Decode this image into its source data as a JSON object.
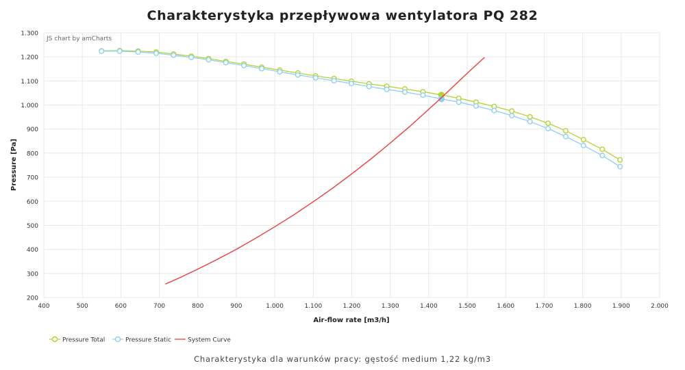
{
  "header": {
    "title": "Charakterystyka przepływowa wentylatora PQ 282",
    "credit": "JS chart by amCharts"
  },
  "footer": {
    "subtitle": "Charakterystyka dla warunków pracy: gęstość medium 1,22 kg/m3"
  },
  "colors": {
    "pressure_total": "#b3d334",
    "pressure_static": "#8fcff0",
    "system_curve": "#ee3b3b",
    "grid": "#e8e8e8",
    "axis_text": "#333333"
  },
  "chart_data": {
    "type": "line",
    "title": "Charakterystyka przepływowa wentylatora PQ 282",
    "xlabel": "Air-flow rate [m3/h]",
    "ylabel": "Pressure [Pa]",
    "xlim": [
      400,
      2000
    ],
    "ylim": [
      200,
      1300
    ],
    "grid": true,
    "legend_position": "bottom-left",
    "x_ticks": [
      "400",
      "500",
      "600",
      "700",
      "800",
      "900",
      "1.000",
      "1.100",
      "1.200",
      "1.300",
      "1.400",
      "1.500",
      "1.600",
      "1.700",
      "1.800",
      "1.900",
      "2.000"
    ],
    "y_ticks": [
      "200",
      "300",
      "400",
      "500",
      "600",
      "700",
      "800",
      "900",
      "1.000",
      "1.100",
      "1.200",
      "1.300"
    ],
    "series": [
      {
        "name": "Pressure Total",
        "color": "#b3d334",
        "marker": "circle",
        "points": [
          [
            550,
            1225
          ],
          [
            597,
            1226
          ],
          [
            645,
            1224
          ],
          [
            692,
            1220
          ],
          [
            737,
            1212
          ],
          [
            783,
            1203
          ],
          [
            828,
            1193
          ],
          [
            873,
            1181
          ],
          [
            920,
            1170
          ],
          [
            966,
            1157
          ],
          [
            1013,
            1145
          ],
          [
            1060,
            1133
          ],
          [
            1106,
            1121
          ],
          [
            1154,
            1110
          ],
          [
            1199,
            1099
          ],
          [
            1245,
            1088
          ],
          [
            1291,
            1078
          ],
          [
            1338,
            1067
          ],
          [
            1385,
            1055
          ],
          [
            1433,
            1042
          ],
          [
            1478,
            1028
          ],
          [
            1523,
            1012
          ],
          [
            1570,
            994
          ],
          [
            1616,
            975
          ],
          [
            1663,
            951
          ],
          [
            1710,
            924
          ],
          [
            1756,
            893
          ],
          [
            1802,
            856
          ],
          [
            1851,
            816
          ],
          [
            1897,
            772
          ]
        ],
        "highlight": [
          1433,
          1042
        ]
      },
      {
        "name": "Pressure Static",
        "color": "#8fcff0",
        "marker": "circle",
        "points": [
          [
            550,
            1224
          ],
          [
            597,
            1224
          ],
          [
            645,
            1220
          ],
          [
            692,
            1215
          ],
          [
            737,
            1207
          ],
          [
            783,
            1198
          ],
          [
            828,
            1188
          ],
          [
            873,
            1176
          ],
          [
            920,
            1164
          ],
          [
            966,
            1151
          ],
          [
            1013,
            1138
          ],
          [
            1060,
            1125
          ],
          [
            1106,
            1113
          ],
          [
            1154,
            1101
          ],
          [
            1199,
            1089
          ],
          [
            1245,
            1077
          ],
          [
            1291,
            1065
          ],
          [
            1338,
            1054
          ],
          [
            1385,
            1041
          ],
          [
            1433,
            1025
          ],
          [
            1478,
            1012
          ],
          [
            1523,
            996
          ],
          [
            1570,
            977
          ],
          [
            1616,
            956
          ],
          [
            1663,
            931
          ],
          [
            1710,
            902
          ],
          [
            1756,
            869
          ],
          [
            1802,
            832
          ],
          [
            1851,
            790
          ],
          [
            1897,
            744
          ]
        ],
        "highlight": [
          1433,
          1025
        ]
      },
      {
        "name": "System Curve",
        "color": "#ee3b3b",
        "marker": "none",
        "points": [
          [
            716,
            256
          ],
          [
            750,
            280
          ],
          [
            800,
            318
          ],
          [
            850,
            358
          ],
          [
            900,
            400
          ],
          [
            950,
            446
          ],
          [
            1000,
            494
          ],
          [
            1050,
            544
          ],
          [
            1100,
            598
          ],
          [
            1150,
            654
          ],
          [
            1200,
            714
          ],
          [
            1250,
            776
          ],
          [
            1300,
            842
          ],
          [
            1350,
            910
          ],
          [
            1400,
            982
          ],
          [
            1430,
            1026
          ],
          [
            1450,
            1056
          ],
          [
            1500,
            1132
          ],
          [
            1545,
            1198
          ]
        ]
      }
    ]
  }
}
